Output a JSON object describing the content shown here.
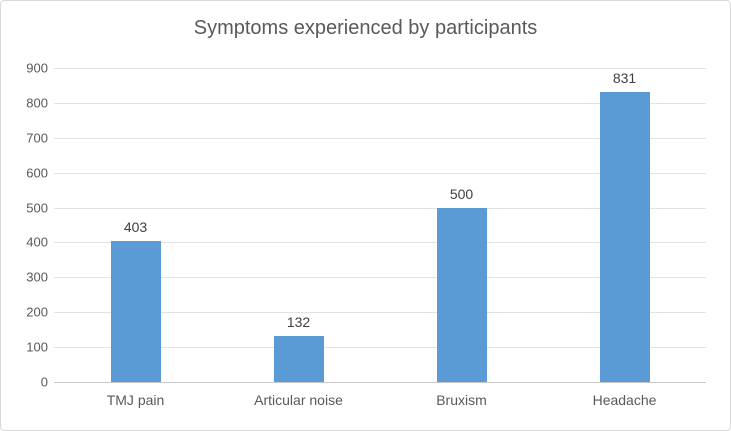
{
  "chart_data": {
    "type": "bar",
    "title": "Symptoms experienced by participants",
    "categories": [
      "TMJ pain",
      "Articular noise",
      "Bruxism",
      "Headache"
    ],
    "values": [
      403,
      132,
      500,
      831
    ],
    "data_labels": [
      "403",
      "132",
      "500",
      "831"
    ],
    "xlabel": "",
    "ylabel": "",
    "ylim": [
      0,
      900
    ],
    "yticks": [
      0,
      100,
      200,
      300,
      400,
      500,
      600,
      700,
      800,
      900
    ],
    "grid": true,
    "legend": false,
    "bar_color": "#5b9bd5",
    "gridline_color": "#e3e3e3",
    "axis_line_color": "#c8c8c8",
    "text_color": "#595959"
  }
}
